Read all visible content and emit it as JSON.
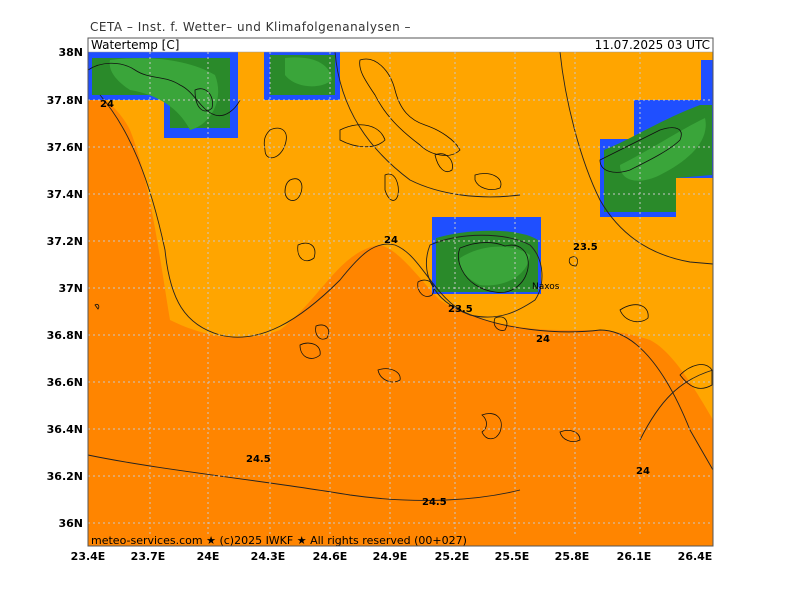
{
  "header": {
    "title": "CETA – Inst. f. Wetter– und Klimafolgenanalysen –"
  },
  "map": {
    "variable_label": "Watertemp [C]",
    "timestamp": "11.07.2025 03 UTC",
    "footer": "meteo-services.com ★ (c)2025 IWKF ★ All rights reserved (00+027)",
    "place_label": "Naxos",
    "lat_labels": [
      "38N",
      "37.8N",
      "37.6N",
      "37.4N",
      "37.2N",
      "37N",
      "36.8N",
      "36.6N",
      "36.4N",
      "36.2N",
      "36N"
    ],
    "lon_labels": [
      "23.4E",
      "23.7E",
      "24E",
      "24.3E",
      "24.6E",
      "24.9E",
      "25.2E",
      "25.5E",
      "25.8E",
      "26.1E",
      "26.4E"
    ],
    "contour_labels": [
      "24",
      "23.5",
      "24",
      "23.5",
      "24",
      "24",
      "24.5",
      "24.5",
      "24"
    ],
    "colors": {
      "warm_orange": "#FF8A00",
      "light_orange": "#FFA300",
      "green": "#2A8A2A",
      "light_green": "#3AA53A",
      "blue": "#1F4FFF",
      "land": "none",
      "grid": "#c8c8c8"
    }
  }
}
